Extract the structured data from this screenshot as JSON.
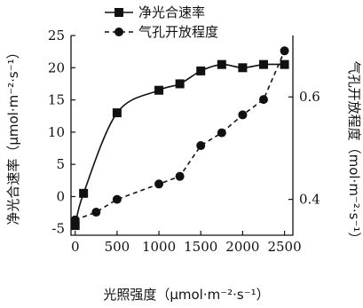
{
  "chart_data": {
    "type": "line",
    "x": [
      0,
      100,
      500,
      1000,
      1250,
      1500,
      1750,
      2000,
      2250,
      2500
    ],
    "xlabel": "光照强度（μmol·m⁻²·s⁻¹）",
    "xticks": [
      "0",
      "500",
      "1000",
      "1500",
      "2000",
      "2500"
    ],
    "xlim": [
      -50,
      2600
    ],
    "y_left": {
      "label": "净光合速率（μmol·m⁻²·s⁻¹）",
      "lim": [
        -6,
        25
      ],
      "ticks": [
        "-5",
        "0",
        "5",
        "10",
        "15",
        "20",
        "25"
      ]
    },
    "y_right": {
      "label": "气孔开放程度（mol·m⁻²·s⁻¹）",
      "lim": [
        0.33,
        0.72
      ],
      "ticks": [
        "0.4",
        "0.6"
      ]
    },
    "series": [
      {
        "name": "净光合速率",
        "axis": "left",
        "marker": "square",
        "line": "solid",
        "x": [
          0,
          100,
          500,
          1000,
          1250,
          1500,
          1750,
          2000,
          2250,
          2500
        ],
        "values": [
          -4.5,
          0.5,
          13,
          16.5,
          17.5,
          19.5,
          20.5,
          20,
          20.5,
          20.5
        ]
      },
      {
        "name": "气孔开放程度",
        "axis": "right",
        "marker": "circle",
        "line": "dashed",
        "x": [
          0,
          250,
          500,
          1000,
          1250,
          1500,
          1750,
          2000,
          2250,
          2500
        ],
        "values": [
          0.36,
          0.375,
          0.4,
          0.43,
          0.445,
          0.505,
          0.53,
          0.565,
          0.595,
          0.69
        ]
      }
    ],
    "legend_placement": "top",
    "grid": false
  }
}
